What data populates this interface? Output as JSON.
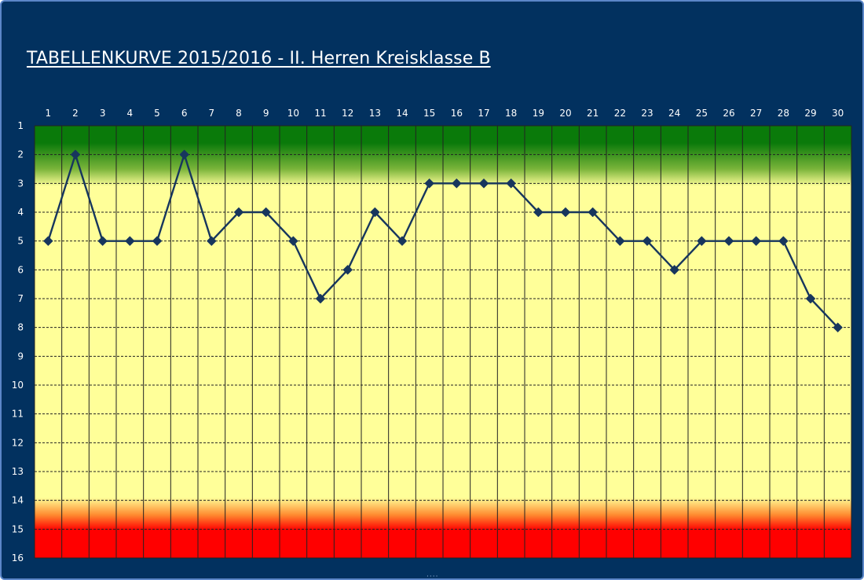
{
  "colors": {
    "background": "#02315f",
    "frame_border": "#5b86c8",
    "plot_yellow": "#ffff99",
    "top_green": "#0a7a0a",
    "bottom_red": "#ff0000",
    "line": "#17365d",
    "grid": "#222222",
    "text": "#ffffff"
  },
  "chart_data": {
    "type": "line",
    "title": "TABELLENKURVE 2015/2016 - II. Herren Kreisklasse B",
    "xlabel": "",
    "ylabel": "",
    "x": [
      1,
      2,
      3,
      4,
      5,
      6,
      7,
      8,
      9,
      10,
      11,
      12,
      13,
      14,
      15,
      16,
      17,
      18,
      19,
      20,
      21,
      22,
      23,
      24,
      25,
      26,
      27,
      28,
      29,
      30
    ],
    "x_ticks": [
      "1",
      "2",
      "3",
      "4",
      "5",
      "6",
      "7",
      "8",
      "9",
      "10",
      "11",
      "12",
      "13",
      "14",
      "15",
      "16",
      "17",
      "18",
      "19",
      "20",
      "21",
      "22",
      "23",
      "24",
      "25",
      "26",
      "27",
      "28",
      "29",
      "30"
    ],
    "y_ticks": [
      "1",
      "2",
      "3",
      "4",
      "5",
      "6",
      "7",
      "8",
      "9",
      "10",
      "11",
      "12",
      "13",
      "14",
      "15",
      "16"
    ],
    "ylim": [
      1,
      16
    ],
    "y_reversed": true,
    "x_axis_position": "top",
    "grid": true,
    "legend": "none",
    "series": [
      {
        "values": [
          5,
          2,
          5,
          5,
          5,
          2,
          5,
          4,
          4,
          5,
          7,
          6,
          4,
          5,
          3,
          3,
          3,
          3,
          4,
          4,
          4,
          5,
          5,
          6,
          5,
          5,
          5,
          5,
          7,
          8
        ],
        "marker": "diamond"
      }
    ]
  }
}
